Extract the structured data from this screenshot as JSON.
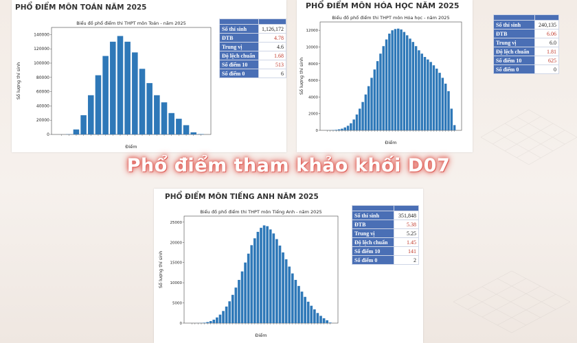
{
  "caption": "Phổ điểm tham khảo khối D07",
  "colors": {
    "bar": "#2e78b8",
    "header": "#4a6fb5",
    "red": "#c0392b"
  },
  "chart_data": [
    {
      "id": "toan",
      "type": "bar",
      "panel_title": "PHỔ ĐIỂM MÔN TOÁN NĂM 2025",
      "title": "Biểu đồ phổ điểm thi THPT môn Toán - năm 2025",
      "xlabel": "Điểm",
      "ylabel": "Số lượng thí sinh",
      "ylim": [
        0,
        150000
      ],
      "yticks": [
        "0",
        "20000",
        "40000",
        "60000",
        "80000",
        "100000",
        "120000",
        "140000"
      ],
      "ytick_values": [
        0,
        20000,
        40000,
        60000,
        80000,
        100000,
        120000,
        140000
      ],
      "values": [
        24,
        272,
        7000,
        27000,
        55000,
        83000,
        110000,
        130000,
        138000,
        130000,
        115000,
        92000,
        72000,
        55000,
        45000,
        30000,
        22000,
        13000,
        3000,
        513
      ],
      "stats": [
        {
          "label": "Số thí sinh",
          "value": "1,126,172",
          "red": false
        },
        {
          "label": "ĐTB",
          "value": "4.78",
          "red": true
        },
        {
          "label": "Trung vị",
          "value": "4.6",
          "red": false
        },
        {
          "label": "Độ lệch chuẩn",
          "value": "1.68",
          "red": true
        },
        {
          "label": "Số điểm 10",
          "value": "513",
          "red": true
        },
        {
          "label": "Số điểm 0",
          "value": "6",
          "red": false
        }
      ]
    },
    {
      "id": "hoa",
      "type": "bar",
      "panel_title": "PHỔ ĐIỂM MÔN HÓA HỌC NĂM 2025",
      "title": "Biểu đồ phổ điểm thi THPT môn Hóa học - năm 2025",
      "xlabel": "Điểm",
      "ylabel": "Số lượng thí sinh",
      "ylim": [
        0,
        13000
      ],
      "yticks": [
        "0",
        "2000",
        "4000",
        "6000",
        "8000",
        "10000",
        "12000"
      ],
      "ytick_values": [
        0,
        2000,
        4000,
        6000,
        8000,
        10000,
        12000
      ],
      "values": [
        5,
        10,
        30,
        60,
        120,
        200,
        350,
        550,
        850,
        1300,
        1900,
        2600,
        3400,
        4300,
        5300,
        6300,
        7300,
        8300,
        9200,
        10100,
        10900,
        11600,
        12000,
        12150,
        12200,
        12100,
        11800,
        11400,
        11000,
        10600,
        10100,
        9600,
        9200,
        8800,
        8500,
        8200,
        7800,
        7400,
        6900,
        6300,
        5600,
        4700,
        2600,
        625
      ],
      "stats": [
        {
          "label": "Số thí sinh",
          "value": "240,135",
          "red": false
        },
        {
          "label": "ĐTB",
          "value": "6.06",
          "red": true
        },
        {
          "label": "Trung vị",
          "value": "6.0",
          "red": false
        },
        {
          "label": "Độ lệch chuẩn",
          "value": "1.81",
          "red": true
        },
        {
          "label": "Số điểm 10",
          "value": "625",
          "red": true
        },
        {
          "label": "Số điểm 0",
          "value": "0",
          "red": false
        }
      ]
    },
    {
      "id": "anh",
      "type": "bar",
      "panel_title": "PHỔ ĐIỂM MÔN TIẾNG ANH NĂM 2025",
      "title": "Biểu đồ phổ điểm thi THPT môn Tiếng Anh - năm 2025",
      "xlabel": "Điểm",
      "ylabel": "Số lượng thí sinh",
      "ylim": [
        0,
        26500
      ],
      "yticks": [
        "0",
        "5000",
        "10000",
        "15000",
        "20000",
        "25000"
      ],
      "ytick_values": [
        0,
        5000,
        10000,
        15000,
        20000,
        25000
      ],
      "values": [
        2,
        5,
        15,
        40,
        100,
        250,
        500,
        850,
        1400,
        2100,
        3000,
        4100,
        5400,
        7000,
        8800,
        10700,
        12800,
        15000,
        17200,
        19300,
        21000,
        22600,
        23600,
        24200,
        24000,
        23200,
        22200,
        20800,
        19200,
        17500,
        15800,
        14000,
        12300,
        10700,
        9200,
        7800,
        6500,
        5300,
        4300,
        3400,
        2500,
        1800,
        1200,
        700,
        141
      ],
      "stats": [
        {
          "label": "Số thí sinh",
          "value": "351,848",
          "red": false
        },
        {
          "label": "ĐTB",
          "value": "5.38",
          "red": true
        },
        {
          "label": "Trung vị",
          "value": "5.25",
          "red": false
        },
        {
          "label": "Độ lệch chuẩn",
          "value": "1.45",
          "red": true
        },
        {
          "label": "Số điểm 10",
          "value": "141",
          "red": true
        },
        {
          "label": "Số điểm 0",
          "value": "2",
          "red": false
        }
      ]
    }
  ]
}
